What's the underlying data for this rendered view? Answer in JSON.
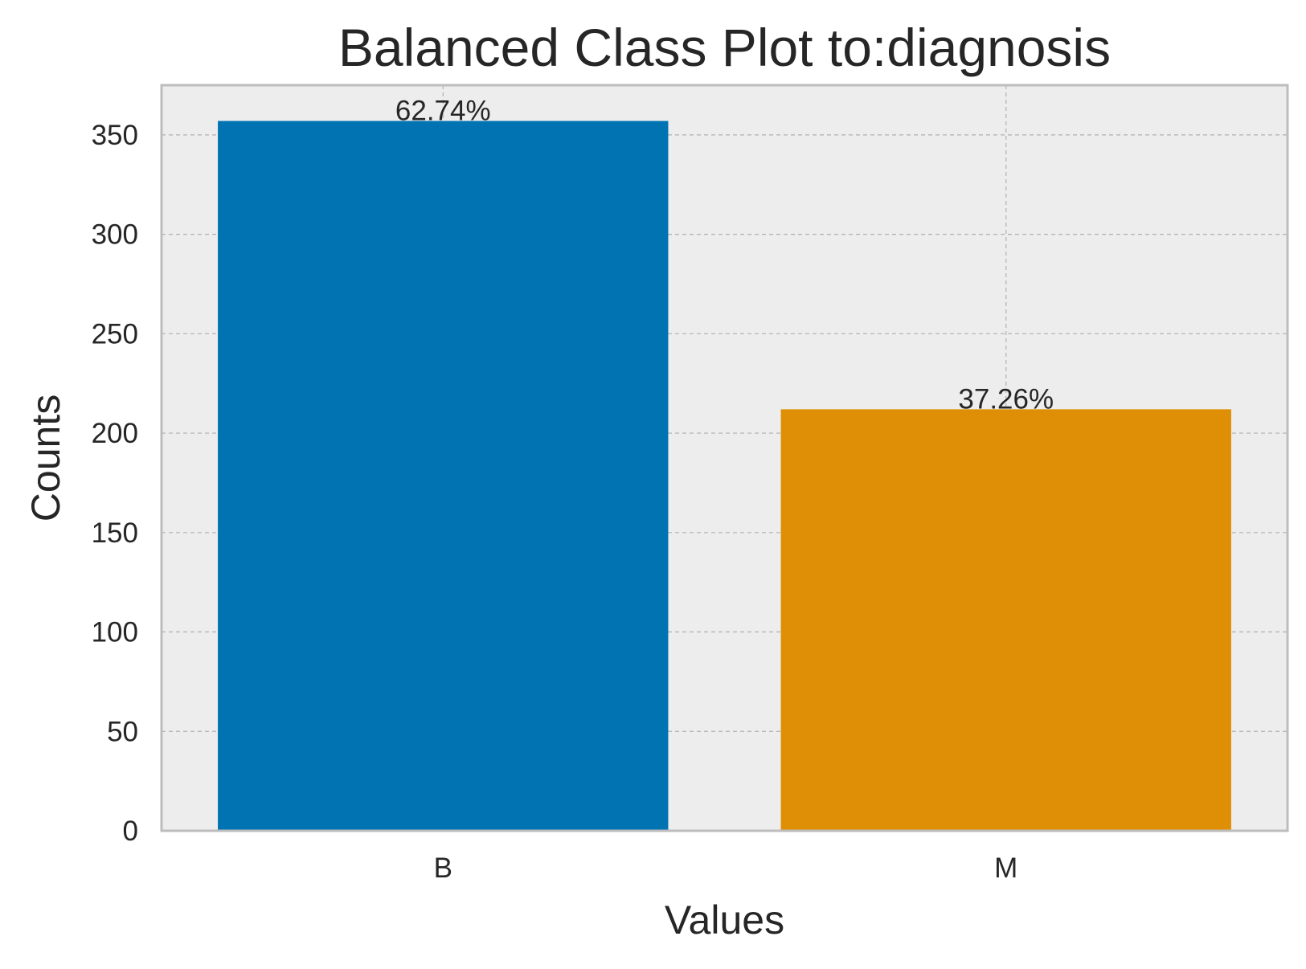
{
  "chart_data": {
    "type": "bar",
    "title": "Balanced Class Plot to:diagnosis",
    "xlabel": "Values",
    "ylabel": "Counts",
    "categories": [
      "B",
      "M"
    ],
    "values": [
      357,
      212
    ],
    "data_labels": [
      "62.74%",
      "37.26%"
    ],
    "ylim": [
      0,
      375
    ],
    "yticks": [
      0,
      50,
      100,
      150,
      200,
      250,
      300,
      350
    ],
    "ytick_labels": [
      "0",
      "50",
      "100",
      "150",
      "200",
      "250",
      "300",
      "350"
    ],
    "grid": true,
    "legend": "none",
    "colors": {
      "bars": [
        "#0173b2",
        "#de8f05"
      ],
      "plot_background": "#ededed",
      "grid": "#b0b0b0",
      "spine": "#bdbdbd"
    }
  }
}
